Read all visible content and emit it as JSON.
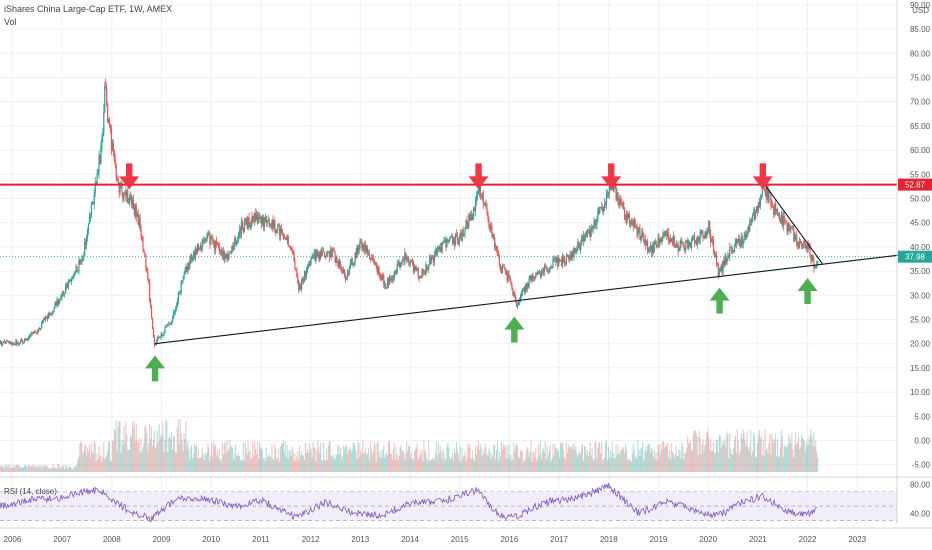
{
  "header": {
    "title": "iShares China Large-Cap ETF, 1W, AMEX",
    "volume_label": "Vol",
    "currency": "USD",
    "rsi_label": "RSI (14, close)"
  },
  "colors": {
    "up": "#26a69a",
    "down": "#ef5350",
    "resistance": "#e52330",
    "arrow_down": "#f23645",
    "arrow_up": "#4caf50",
    "rsi_line": "#7e57c2",
    "rsi_band": "#ede7f6",
    "price_badge": "#26a69a",
    "level_badge": "#e52330"
  },
  "price_badge": "37.98",
  "level_badge": "52.87",
  "chart_data": [
    {
      "type": "candlestick",
      "title": "iShares China Large-Cap ETF, 1W, AMEX",
      "x_ticks": [
        "2006",
        "2007",
        "2008",
        "2009",
        "2010",
        "2011",
        "2012",
        "2013",
        "2014",
        "2015",
        "2016",
        "2017",
        "2018",
        "2019",
        "2020",
        "2021",
        "2022",
        "2023"
      ],
      "y_ticks": [
        "90.00",
        "85.00",
        "80.00",
        "75.00",
        "70.00",
        "65.00",
        "60.00",
        "55.00",
        "50.00",
        "45.00",
        "40.00",
        "35.00",
        "30.00",
        "25.00",
        "20.00",
        "15.00",
        "10.00",
        "5.00",
        "0.00",
        "-5.00"
      ],
      "ylim": [
        -6.5,
        91
      ],
      "key_points": [
        {
          "x": 2005.75,
          "y": 20
        },
        {
          "x": 2006.2,
          "y": 20.5
        },
        {
          "x": 2006.5,
          "y": 23
        },
        {
          "x": 2007.0,
          "y": 30
        },
        {
          "x": 2007.4,
          "y": 38
        },
        {
          "x": 2007.62,
          "y": 50
        },
        {
          "x": 2007.8,
          "y": 62
        },
        {
          "x": 2007.85,
          "y": 72
        },
        {
          "x": 2008.0,
          "y": 60
        },
        {
          "x": 2008.15,
          "y": 52
        },
        {
          "x": 2008.35,
          "y": 50
        },
        {
          "x": 2008.55,
          "y": 45
        },
        {
          "x": 2008.72,
          "y": 33
        },
        {
          "x": 2008.84,
          "y": 20
        },
        {
          "x": 2009.0,
          "y": 22
        },
        {
          "x": 2009.2,
          "y": 25
        },
        {
          "x": 2009.4,
          "y": 33
        },
        {
          "x": 2009.6,
          "y": 38
        },
        {
          "x": 2009.9,
          "y": 42
        },
        {
          "x": 2010.3,
          "y": 38
        },
        {
          "x": 2010.6,
          "y": 44
        },
        {
          "x": 2010.9,
          "y": 46
        },
        {
          "x": 2011.3,
          "y": 44
        },
        {
          "x": 2011.6,
          "y": 40
        },
        {
          "x": 2011.75,
          "y": 31
        },
        {
          "x": 2012.0,
          "y": 38
        },
        {
          "x": 2012.4,
          "y": 39
        },
        {
          "x": 2012.7,
          "y": 34
        },
        {
          "x": 2013.0,
          "y": 41
        },
        {
          "x": 2013.5,
          "y": 32
        },
        {
          "x": 2013.9,
          "y": 38
        },
        {
          "x": 2014.2,
          "y": 34
        },
        {
          "x": 2014.6,
          "y": 40
        },
        {
          "x": 2015.0,
          "y": 42
        },
        {
          "x": 2015.3,
          "y": 48
        },
        {
          "x": 2015.38,
          "y": 53
        },
        {
          "x": 2015.6,
          "y": 44
        },
        {
          "x": 2015.8,
          "y": 36
        },
        {
          "x": 2016.0,
          "y": 33
        },
        {
          "x": 2016.13,
          "y": 28
        },
        {
          "x": 2016.4,
          "y": 33
        },
        {
          "x": 2016.8,
          "y": 36
        },
        {
          "x": 2017.2,
          "y": 38
        },
        {
          "x": 2017.6,
          "y": 43
        },
        {
          "x": 2017.95,
          "y": 50
        },
        {
          "x": 2018.05,
          "y": 53
        },
        {
          "x": 2018.3,
          "y": 47
        },
        {
          "x": 2018.6,
          "y": 43
        },
        {
          "x": 2018.85,
          "y": 39
        },
        {
          "x": 2019.1,
          "y": 43
        },
        {
          "x": 2019.4,
          "y": 40
        },
        {
          "x": 2019.7,
          "y": 41
        },
        {
          "x": 2020.0,
          "y": 44
        },
        {
          "x": 2020.2,
          "y": 34
        },
        {
          "x": 2020.4,
          "y": 39
        },
        {
          "x": 2020.7,
          "y": 42
        },
        {
          "x": 2020.95,
          "y": 47
        },
        {
          "x": 2021.1,
          "y": 53
        },
        {
          "x": 2021.3,
          "y": 48
        },
        {
          "x": 2021.6,
          "y": 44
        },
        {
          "x": 2021.8,
          "y": 41
        },
        {
          "x": 2022.0,
          "y": 40
        },
        {
          "x": 2022.12,
          "y": 36
        },
        {
          "x": 2022.2,
          "y": 38
        }
      ],
      "annotations": {
        "resistance_level": 52.87,
        "support_trendline": [
          {
            "x": 2008.87,
            "y": 20
          },
          {
            "x": 2024.0,
            "y": 38.5
          }
        ],
        "falling_trendline": [
          {
            "x": 2021.13,
            "y": 53
          },
          {
            "x": 2022.3,
            "y": 36.5
          }
        ],
        "down_arrows": [
          {
            "x": 2008.35,
            "y": 56
          },
          {
            "x": 2015.38,
            "y": 56
          },
          {
            "x": 2018.05,
            "y": 56
          },
          {
            "x": 2021.1,
            "y": 56
          }
        ],
        "up_arrows": [
          {
            "x": 2008.87,
            "y": 18
          },
          {
            "x": 2016.1,
            "y": 26
          },
          {
            "x": 2020.23,
            "y": 32
          },
          {
            "x": 2022.0,
            "y": 34
          }
        ]
      },
      "legend": "none"
    },
    {
      "type": "line",
      "title": "RSI (14, close)",
      "y_ticks": [
        "80.00",
        "40.00"
      ],
      "band": [
        30,
        70
      ],
      "ylim": [
        25,
        85
      ],
      "key_points": [
        {
          "x": 2005.75,
          "y": 50
        },
        {
          "x": 2006.3,
          "y": 58
        },
        {
          "x": 2007.0,
          "y": 62
        },
        {
          "x": 2007.6,
          "y": 72
        },
        {
          "x": 2007.85,
          "y": 68
        },
        {
          "x": 2008.3,
          "y": 45
        },
        {
          "x": 2008.8,
          "y": 32
        },
        {
          "x": 2009.3,
          "y": 60
        },
        {
          "x": 2009.8,
          "y": 62
        },
        {
          "x": 2010.5,
          "y": 50
        },
        {
          "x": 2011.0,
          "y": 58
        },
        {
          "x": 2011.7,
          "y": 34
        },
        {
          "x": 2012.3,
          "y": 55
        },
        {
          "x": 2012.8,
          "y": 42
        },
        {
          "x": 2013.4,
          "y": 36
        },
        {
          "x": 2014.0,
          "y": 54
        },
        {
          "x": 2014.7,
          "y": 58
        },
        {
          "x": 2015.35,
          "y": 72
        },
        {
          "x": 2015.8,
          "y": 36
        },
        {
          "x": 2016.1,
          "y": 34
        },
        {
          "x": 2016.7,
          "y": 55
        },
        {
          "x": 2017.4,
          "y": 62
        },
        {
          "x": 2018.0,
          "y": 78
        },
        {
          "x": 2018.6,
          "y": 40
        },
        {
          "x": 2019.2,
          "y": 56
        },
        {
          "x": 2019.7,
          "y": 44
        },
        {
          "x": 2020.2,
          "y": 36
        },
        {
          "x": 2020.7,
          "y": 56
        },
        {
          "x": 2021.1,
          "y": 64
        },
        {
          "x": 2021.6,
          "y": 42
        },
        {
          "x": 2022.0,
          "y": 38
        },
        {
          "x": 2022.2,
          "y": 44
        }
      ]
    }
  ]
}
